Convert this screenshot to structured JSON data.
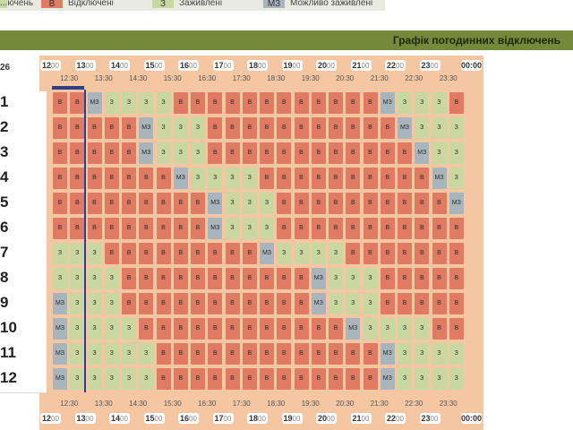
{
  "legend": {
    "items": [
      {
        "code": "",
        "label": "...ючень",
        "color": "#c9d8a0"
      },
      {
        "code": "В",
        "label": "Відключені",
        "color": "#e07a63"
      },
      {
        "code": "З",
        "label": "Заживлені",
        "color": "#c9d8a0"
      },
      {
        "code": "МЗ",
        "label": "Можливо заживлені",
        "color": "#a8b5bc"
      }
    ]
  },
  "banner": {
    "title": "Графік погодинних відключень"
  },
  "date_partial": "26",
  "hours": [
    "12",
    "13",
    "14",
    "15",
    "16",
    "17",
    "18",
    "19",
    "20",
    "21",
    "22",
    "23"
  ],
  "hour_suffix": "00",
  "end_hour": "00:00",
  "half_hours": [
    "12:30",
    "13:30",
    "14:30",
    "15:30",
    "16:30",
    "17:30",
    "18:30",
    "19:30",
    "20:30",
    "21:30",
    "22:30",
    "23:30"
  ],
  "codes": {
    "v": "В",
    "z": "З",
    "m": "МЗ"
  },
  "groups": [
    {
      "label": "1",
      "cells": "vvmzzzzvvvvvvvvvvvvmzzzv"
    },
    {
      "label": "2",
      "cells": "vvvvvmzzzvvvvvvvvvvvmzzz"
    },
    {
      "label": "3",
      "cells": "vvvvvmzzzvvvvvvvvvvvvmzz"
    },
    {
      "label": "4",
      "cells": "vvvvvvvmzzzzvvvvvvvvvvmz"
    },
    {
      "label": "5",
      "cells": "vvvvvvvvvmzzzvvvvvvvvvvm"
    },
    {
      "label": "6",
      "cells": "vvvvvvvvvmzzzvvvvvvvvvvv"
    },
    {
      "label": "7",
      "cells": "zzzvvvvvvvvvmzzzzvvvvvvv"
    },
    {
      "label": "8",
      "cells": "zzzzvvvvvvvvvvvmzzzvvvvv"
    },
    {
      "label": "9",
      "cells": "mzzzvvvvvvvvvvvmzzzvvvvv"
    },
    {
      "label": "10",
      "cells": "mzzzzvvvvvvvvvvvvmzzzzvv"
    },
    {
      "label": "11",
      "cells": "mzzzzzvvvvvvvvvvvvvmzzzz"
    },
    {
      "label": "12",
      "cells": "mzzzzzvvvvvvvvvvvvvmzzzz"
    }
  ]
}
